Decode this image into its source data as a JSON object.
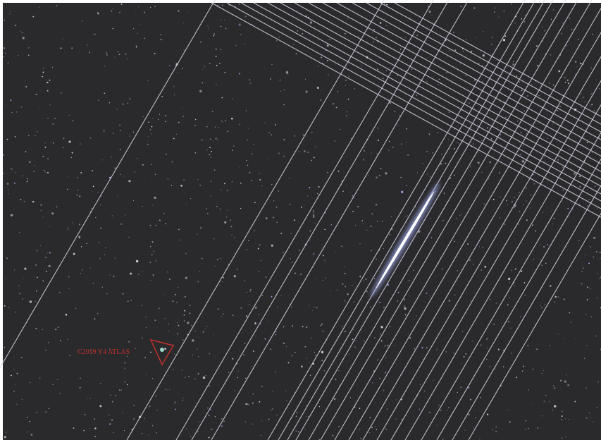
{
  "annotation": {
    "label": "C2019 Y4 ATLAS"
  }
}
